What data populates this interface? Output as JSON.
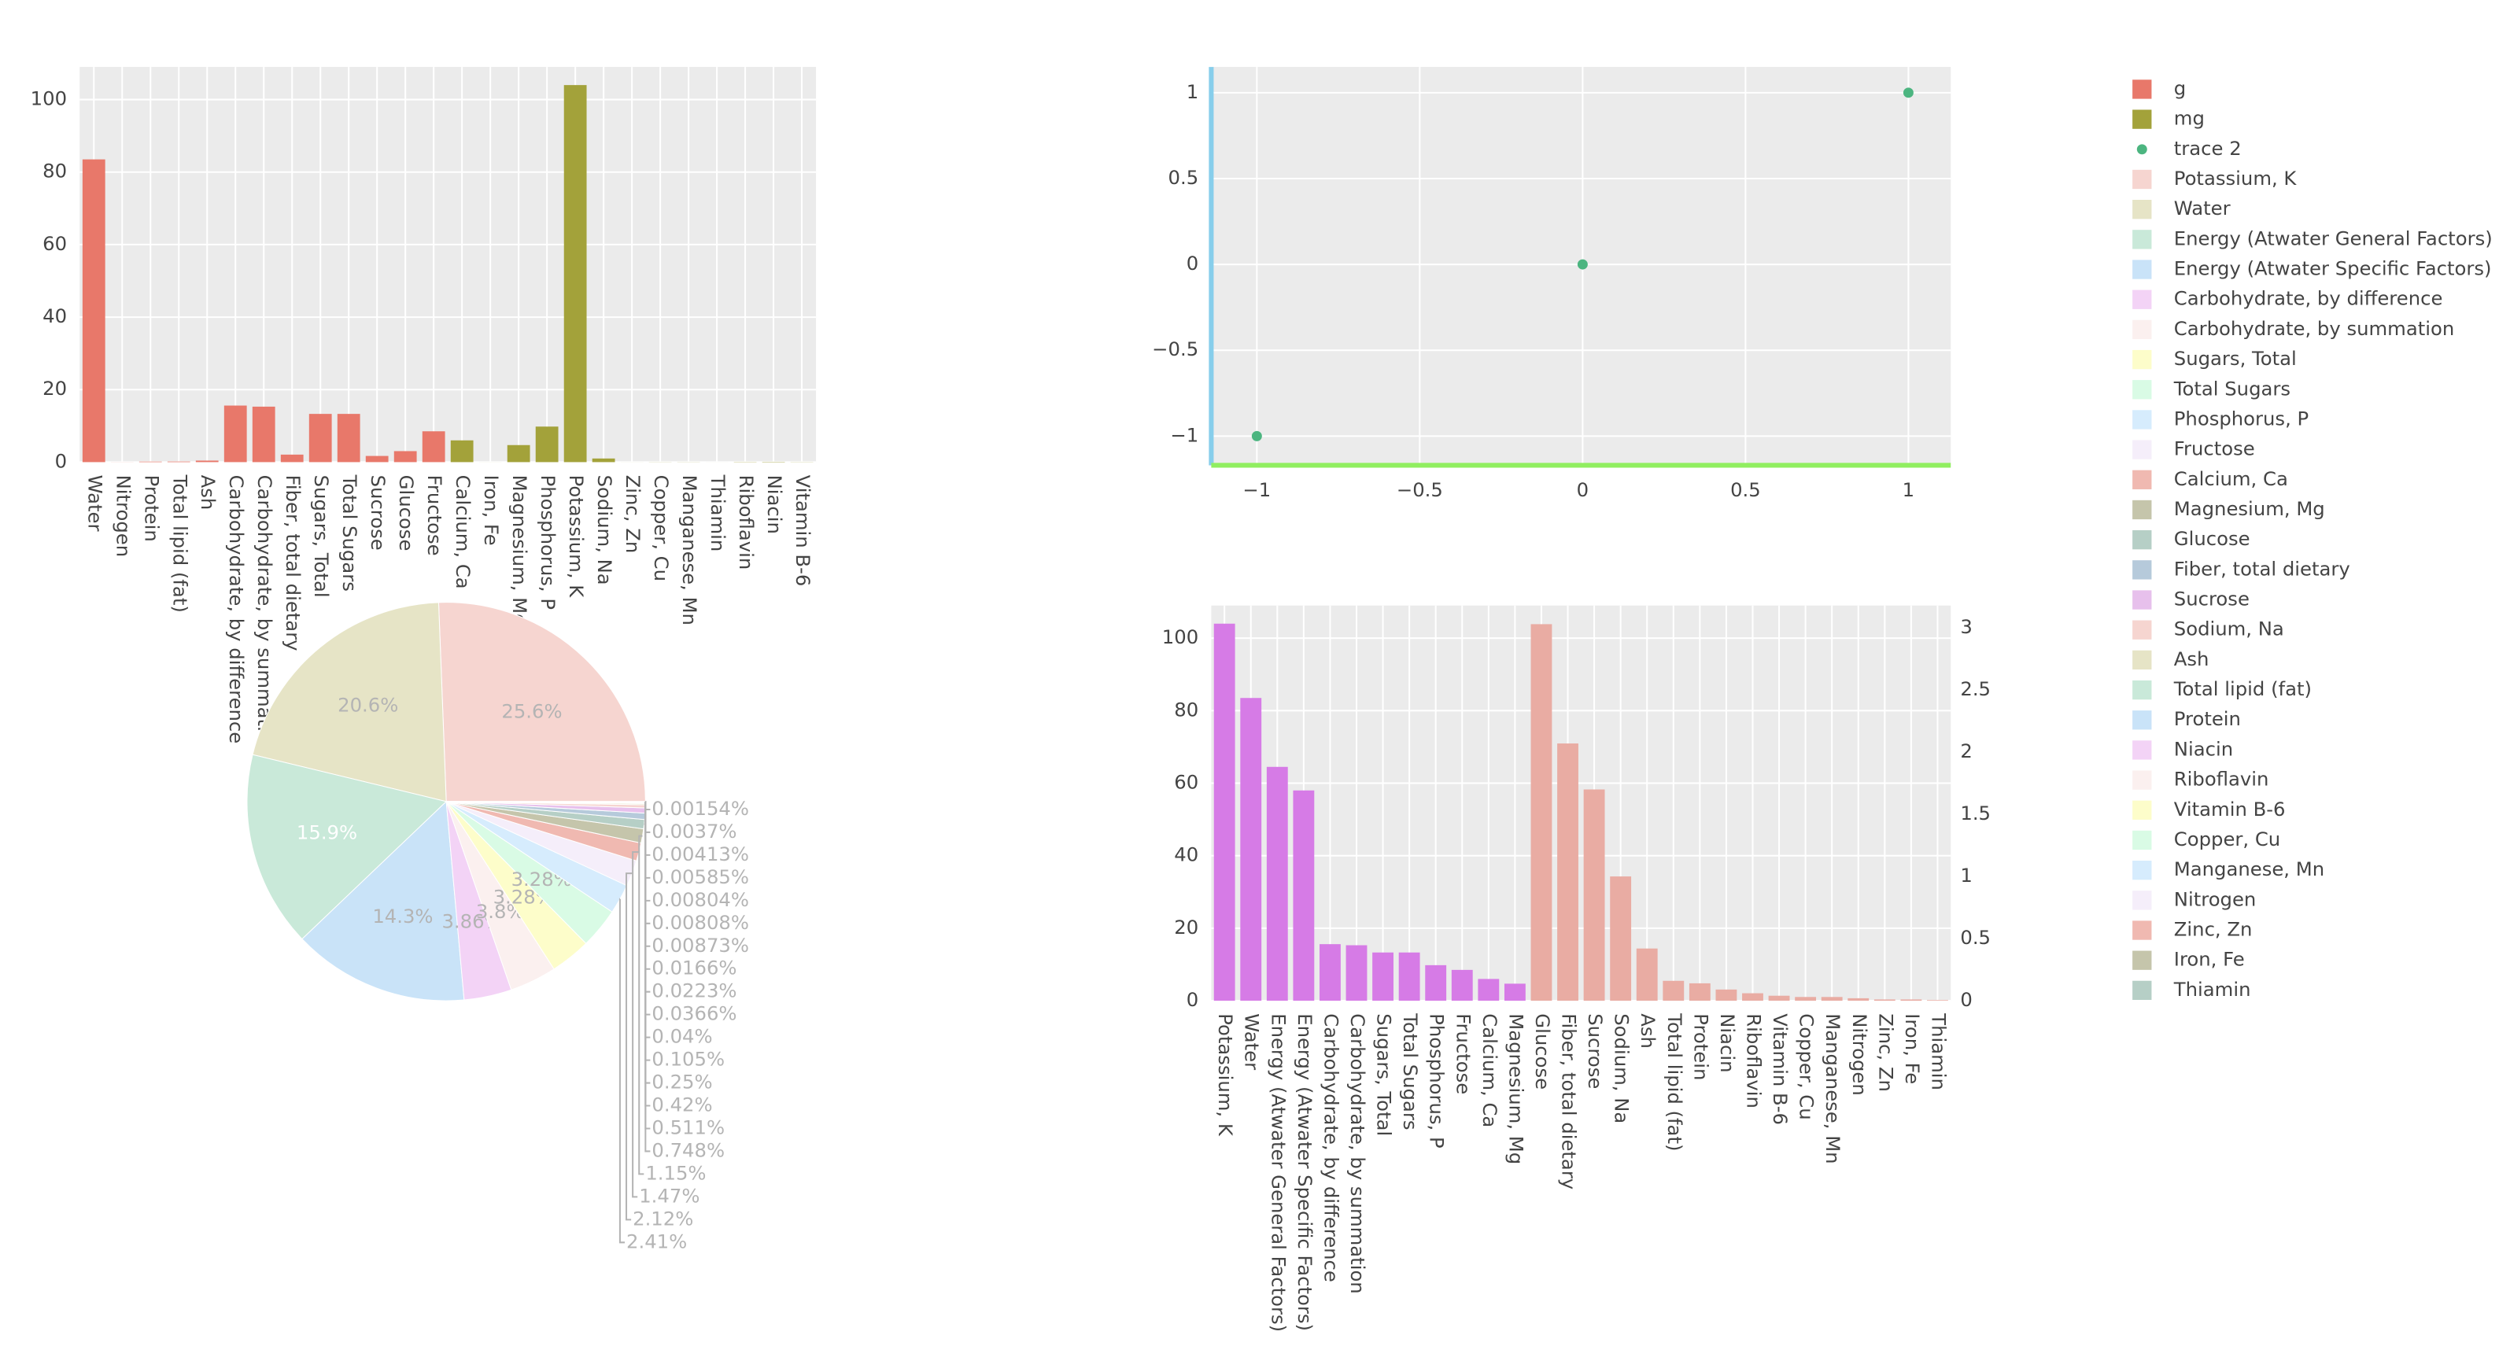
{
  "chart_data": [
    {
      "type": "bar",
      "showlegend": true,
      "categories": [
        "Water",
        "Nitrogen",
        "Protein",
        "Total lipid (fat)",
        "Ash",
        "Carbohydrate, by difference",
        "Carbohydrate, by summation",
        "Fiber, total dietary",
        "Sugars, Total",
        "Total Sugars",
        "Sucrose",
        "Glucose",
        "Fructose",
        "Calcium, Ca",
        "Iron, Fe",
        "Magnesium, Mg",
        "Phosphorus, P",
        "Potassium, K",
        "Sodium, Na",
        "Zinc, Zn",
        "Copper, Cu",
        "Manganese, Mn",
        "Thiamin",
        "Riboflavin",
        "Niacin",
        "Vitamin B-6"
      ],
      "series": [
        {
          "name": "g",
          "color": "#e8786a",
          "values": [
            83.5,
            0.02,
            0.14,
            0.16,
            0.42,
            15.6,
            15.3,
            2.07,
            13.3,
            13.3,
            1.7,
            3.03,
            8.5,
            null,
            null,
            null,
            null,
            null,
            null,
            null,
            null,
            null,
            null,
            null,
            null,
            null
          ]
        },
        {
          "name": "mg",
          "color": "#a3a23a",
          "values": [
            null,
            null,
            null,
            null,
            null,
            null,
            null,
            null,
            null,
            null,
            null,
            null,
            null,
            6,
            0.01,
            4.7,
            9.8,
            104,
            1,
            0.01,
            0.03,
            0.03,
            0.005,
            0.06,
            0.09,
            0.04
          ]
        }
      ],
      "ylim": [
        0,
        109
      ],
      "yticks": [
        0,
        20,
        40,
        60,
        80,
        100
      ],
      "grid": true
    },
    {
      "type": "scatter",
      "showlegend": true,
      "x": [
        -1,
        0,
        1
      ],
      "series": [
        {
          "name": "trace 2",
          "color": "#4cb580",
          "values": [
            -1,
            0,
            1
          ]
        }
      ],
      "xlim": [
        -1.14,
        1.13
      ],
      "ylim": [
        -1.17,
        1.15
      ],
      "xticks": [
        {
          "value": -1,
          "label": "−1"
        },
        {
          "value": -0.5,
          "label": "−0.5"
        },
        0,
        0.5,
        1
      ],
      "yticks": [
        {
          "value": -1,
          "label": "−1"
        },
        {
          "value": -0.5,
          "label": "−0.5"
        },
        0,
        0.5,
        1
      ],
      "grid": true,
      "x_axis_color": "#90ee60",
      "y_axis_color": "#87ceeb"
    },
    {
      "type": "pie",
      "showlegend": true,
      "categories": [
        "Potassium, K",
        "Water",
        "Energy (Atwater General Factors)",
        "Energy (Atwater Specific Factors)",
        "Carbohydrate, by difference",
        "Carbohydrate, by summation",
        "Sugars, Total",
        "Total Sugars",
        "Phosphorus, P",
        "Fructose",
        "Calcium, Ca",
        "Magnesium, Mg",
        "Glucose",
        "Fiber, total dietary",
        "Sucrose",
        "Sodium, Na",
        "Ash",
        "Total lipid (fat)",
        "Protein",
        "Niacin",
        "Riboflavin",
        "Vitamin B-6",
        "Copper, Cu",
        "Manganese, Mn",
        "Nitrogen",
        "Zinc, Zn",
        "Iron, Fe",
        "Thiamin"
      ],
      "values": [
        25.6,
        20.6,
        15.9,
        14.3,
        3.86,
        3.8,
        3.28,
        3.28,
        2.41,
        2.12,
        1.47,
        1.15,
        0.748,
        0.511,
        0.42,
        0.25,
        0.105,
        0.04,
        0.0366,
        0.0223,
        0.0166,
        0.00873,
        0.00808,
        0.00804,
        0.00585,
        0.00413,
        0.0037,
        0.00154
      ],
      "value_labels": [
        "25.6%",
        "20.6%",
        "15.9%",
        "14.3%",
        "3.86%",
        "3.8%",
        "3.28%",
        "3.28%",
        "2.41%",
        "2.12%",
        "1.47%",
        "1.15%",
        "0.748%",
        "0.511%",
        "0.42%",
        "0.25%",
        "0.105%",
        "0.04%",
        "0.0366%",
        "0.0223%",
        "0.0166%",
        "0.00873%",
        "0.00808%",
        "0.00804%",
        "0.00585%",
        "0.00413%",
        "0.0037%",
        "0.00154%"
      ],
      "colors": [
        "#f6d5d0",
        "#e6e4c6",
        "#c9e9d9",
        "#c9e3f8",
        "#f3d3f6",
        "#fbf0ef",
        "#fdfdca",
        "#d9fbe5",
        "#d6ecfd",
        "#f5eefa",
        "#f0b9b1",
        "#c5c5ab",
        "#b6cfc6",
        "#b6cadb",
        "#e7c0ec",
        "#f6d5d0",
        "#e6e4c6",
        "#c9e9d9",
        "#c9e3f8",
        "#f3d3f6",
        "#fbf0ef",
        "#fdfdca",
        "#d9fbe5",
        "#d6ecfd",
        "#f5eefa",
        "#f0b9b1",
        "#c5c5ab",
        "#b6cfc6"
      ]
    },
    {
      "type": "bar",
      "showlegend": false,
      "categories": [
        "Potassium, K",
        "Water",
        "Energy (Atwater General Factors)",
        "Energy (Atwater Specific Factors)",
        "Carbohydrate, by difference",
        "Carbohydrate, by summation",
        "Sugars, Total",
        "Total Sugars",
        "Phosphorus, P",
        "Fructose",
        "Calcium, Ca",
        "Magnesium, Mg",
        "Glucose",
        "Fiber, total dietary",
        "Sucrose",
        "Sodium, Na",
        "Ash",
        "Total lipid (fat)",
        "Protein",
        "Niacin",
        "Riboflavin",
        "Vitamin B-6",
        "Copper, Cu",
        "Manganese, Mn",
        "Nitrogen",
        "Zinc, Zn",
        "Iron, Fe",
        "Thiamin"
      ],
      "series": [
        {
          "color": "#d67be6",
          "values": [
            104,
            83.5,
            64.5,
            58,
            15.6,
            15.3,
            13.3,
            13.3,
            9.8,
            8.5,
            6,
            4.7,
            null,
            null,
            null,
            null,
            null,
            null,
            null,
            null,
            null,
            null,
            null,
            null,
            null,
            null,
            null,
            null
          ]
        },
        {
          "color": "#e9aca3",
          "axis": "y2",
          "values": [
            null,
            null,
            null,
            null,
            null,
            null,
            null,
            null,
            null,
            null,
            null,
            null,
            3.03,
            2.07,
            1.7,
            1.0,
            0.42,
            0.16,
            0.14,
            0.09,
            0.06,
            0.04,
            0.03,
            0.03,
            0.02,
            0.01,
            0.01,
            0.005
          ]
        }
      ],
      "ylim": [
        0,
        109
      ],
      "yticks": [
        0,
        20,
        40,
        60,
        80,
        100
      ],
      "y2lim": [
        0,
        3.18
      ],
      "y2ticks": [
        0,
        0.5,
        1,
        1.5,
        2,
        2.5,
        3
      ],
      "grid": true
    }
  ]
}
